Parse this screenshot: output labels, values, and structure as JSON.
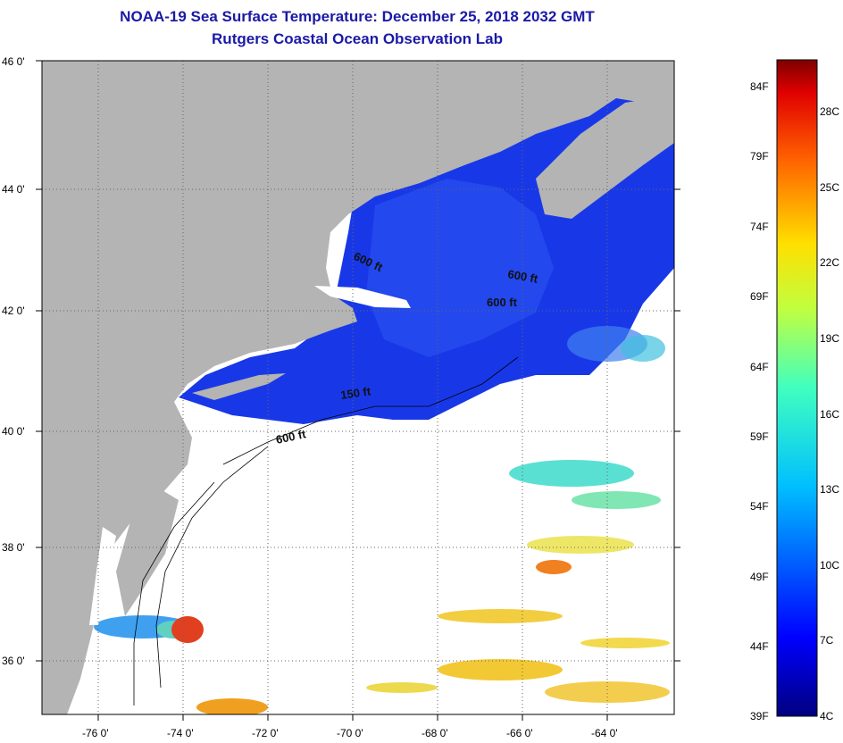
{
  "title": "NOAA-19 Sea Surface Temperature:  December 25, 2018 2032 GMT",
  "subtitle": "Rutgers Coastal Ocean Observation Lab",
  "latitude_labels": [
    "46 0'",
    "44 0'",
    "42 0'",
    "40 0'",
    "38 0'",
    "36 0'"
  ],
  "longitude_labels": [
    "-76 0'",
    "-74 0'",
    "-72 0'",
    "-70 0'",
    "-68 0'",
    "-66 0'",
    "-64 0'"
  ],
  "contour_labels": [
    "600 ft",
    "600 ft",
    "600 ft",
    "150 ft",
    "600 ft"
  ],
  "colorbar": {
    "fahrenheit": [
      "84F",
      "79F",
      "74F",
      "69F",
      "64F",
      "59F",
      "54F",
      "49F",
      "44F",
      "39F"
    ],
    "celsius": [
      "28C",
      "25C",
      "22C",
      "19C",
      "16C",
      "13C",
      "10C",
      "7C",
      "4C"
    ]
  },
  "colors": {
    "land": "#b4b4b4",
    "cloud": "#ffffff",
    "cold_water": "#1030e0",
    "title": "#1a1aa6"
  }
}
